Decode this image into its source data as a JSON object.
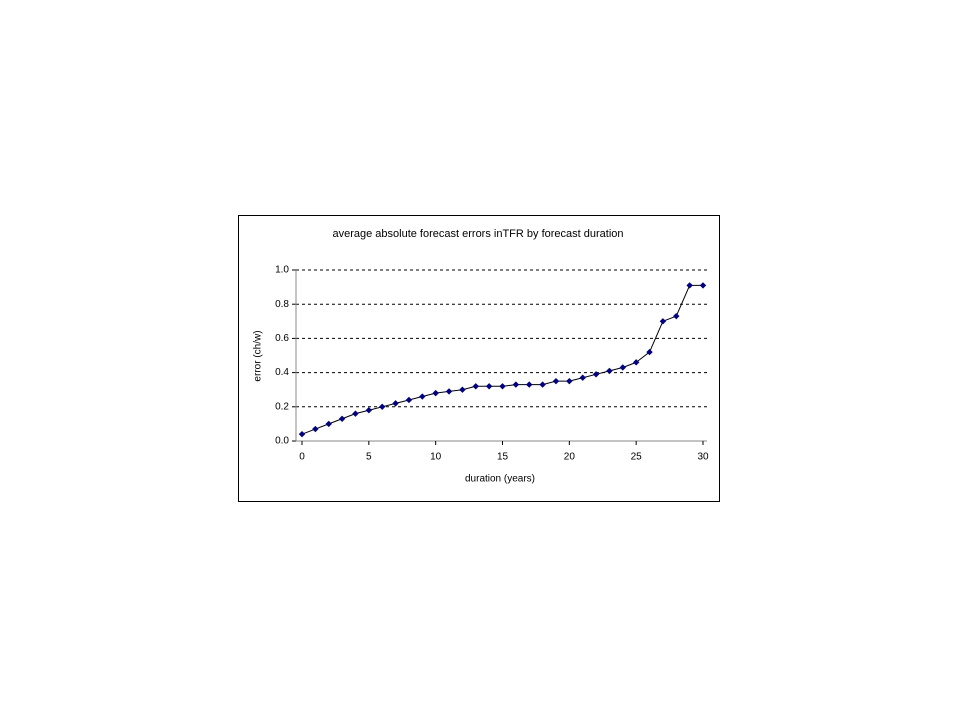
{
  "chart_data": {
    "type": "line",
    "title": "average absolute forecast errors inTFR by forecast duration",
    "x_label": "duration (years)",
    "y_label": "error (ch/w)",
    "x": [
      0,
      1,
      2,
      3,
      4,
      5,
      6,
      7,
      8,
      9,
      10,
      11,
      12,
      13,
      14,
      15,
      16,
      17,
      18,
      19,
      20,
      21,
      22,
      23,
      24,
      25,
      26,
      27,
      28,
      29,
      30
    ],
    "series": [
      {
        "color": "#000080",
        "line_color": "#000000",
        "values": [
          0.04,
          0.07,
          0.1,
          0.13,
          0.16,
          0.18,
          0.2,
          0.22,
          0.24,
          0.26,
          0.28,
          0.29,
          0.3,
          0.32,
          0.32,
          0.32,
          0.33,
          0.33,
          0.33,
          0.35,
          0.35,
          0.37,
          0.39,
          0.41,
          0.43,
          0.46,
          0.52,
          0.7,
          0.73,
          0.91,
          0.91
        ]
      }
    ],
    "xlim": [
      0,
      30
    ],
    "xticks": [
      0,
      5,
      10,
      15,
      20,
      25,
      30
    ],
    "ylim": [
      0,
      1
    ],
    "yticks": [
      {
        "value": 0,
        "label": "0.0"
      },
      0.2,
      0.4,
      0.6,
      0.8,
      {
        "value": 1,
        "label": "1.0"
      }
    ],
    "grid": true
  }
}
